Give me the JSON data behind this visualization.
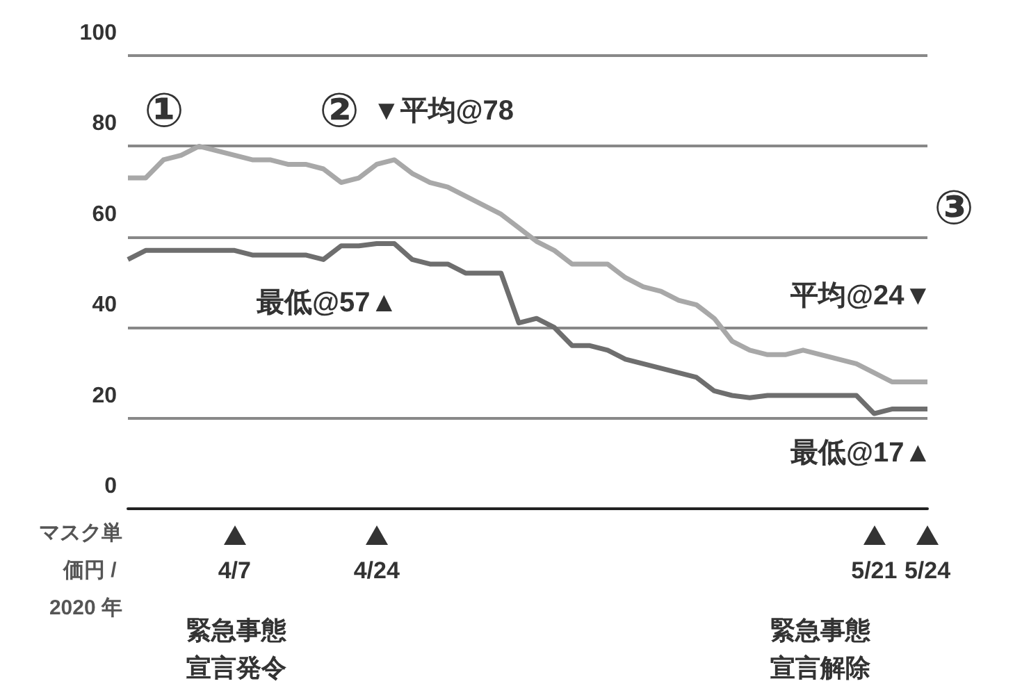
{
  "chart_data": {
    "type": "line",
    "ylabel": "マスク単価円 / 2020 年",
    "categories": [
      null,
      null,
      null,
      null,
      null,
      null,
      "4/7",
      null,
      null,
      null,
      null,
      null,
      null,
      null,
      "4/24",
      null,
      null,
      null,
      null,
      null,
      null,
      null,
      null,
      null,
      null,
      null,
      null,
      null,
      null,
      null,
      null,
      null,
      null,
      null,
      null,
      null,
      null,
      null,
      null,
      null,
      null,
      null,
      "5/21",
      null,
      null,
      "5/24"
    ],
    "series": [
      {
        "color": "#a8a8a8",
        "values": [
          73,
          73,
          77,
          78,
          80,
          79,
          78,
          77,
          77,
          76,
          76,
          75,
          72,
          73,
          76,
          77,
          74,
          72,
          71,
          69,
          67,
          65,
          62,
          59,
          57,
          54,
          54,
          54,
          51,
          49,
          48,
          46,
          45,
          42,
          37,
          35,
          34,
          34,
          35,
          34,
          33,
          32,
          30,
          28,
          28,
          28
        ]
      },
      {
        "color": "#6e6e6e",
        "values": [
          55,
          57,
          57,
          57,
          57,
          57,
          57,
          56,
          56,
          56,
          56,
          55,
          58,
          58,
          58.5,
          58.5,
          55,
          54,
          54,
          52,
          52,
          52,
          41,
          42,
          40,
          36,
          36,
          35,
          33,
          32,
          31,
          30,
          29,
          26,
          25,
          24.5,
          25,
          25,
          25,
          25,
          25,
          25,
          21,
          22,
          22,
          22
        ]
      }
    ],
    "ylim": [
      0,
      100
    ],
    "yticks": [
      0,
      20,
      40,
      60,
      80,
      100
    ],
    "grid": "y",
    "marker": "none",
    "line_style": "solid",
    "annotations": [
      "①",
      "②",
      "③",
      "▼平均@78",
      "最低@57▲",
      "平均@24▼",
      "最低@17▲",
      "緊急事態宣言発令",
      "緊急事態宣言解除"
    ]
  }
}
